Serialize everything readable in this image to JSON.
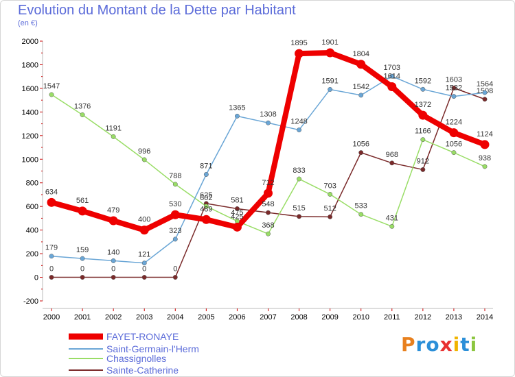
{
  "header": {
    "title": "Evolution du Montant de la Dette par Habitant",
    "subtitle": "(en €)"
  },
  "logo": {
    "text": "Proxiti"
  },
  "chart_data": {
    "type": "line",
    "title": "Evolution du Montant de la Dette par Habitant",
    "ylabel": "(en €)",
    "xlabel": "",
    "x": [
      2000,
      2001,
      2002,
      2003,
      2004,
      2005,
      2006,
      2007,
      2008,
      2009,
      2010,
      2011,
      2012,
      2013,
      2014
    ],
    "ylim": [
      -200,
      2000
    ],
    "yticks": [
      -200,
      0,
      200,
      400,
      600,
      800,
      1000,
      1200,
      1400,
      1600,
      1800,
      2000
    ],
    "grid": false,
    "legend": "bottom-left",
    "series": [
      {
        "name": "FAYET-RONAYE",
        "color": "#ee0000",
        "values": [
          634,
          561,
          479,
          400,
          530,
          489,
          425,
          712,
          1895,
          1901,
          1804,
          1614,
          1372,
          1224,
          1124
        ]
      },
      {
        "name": "Saint-Germain-l'Herm",
        "color": "#6aa6d6",
        "values": [
          179,
          159,
          140,
          121,
          323,
          871,
          1365,
          1308,
          1248,
          1591,
          1542,
          1703,
          1592,
          1532,
          1564
        ]
      },
      {
        "name": "Chassignolles",
        "color": "#99dd66",
        "values": [
          1547,
          1376,
          1191,
          996,
          788,
          602,
          475,
          368,
          833,
          703,
          533,
          431,
          1166,
          1056,
          938
        ]
      },
      {
        "name": "Sainte-Catherine",
        "color": "#7a2a2a",
        "values": [
          0,
          0,
          0,
          0,
          0,
          625,
          581,
          548,
          515,
          512,
          1056,
          968,
          912,
          1603,
          1508
        ]
      }
    ]
  }
}
